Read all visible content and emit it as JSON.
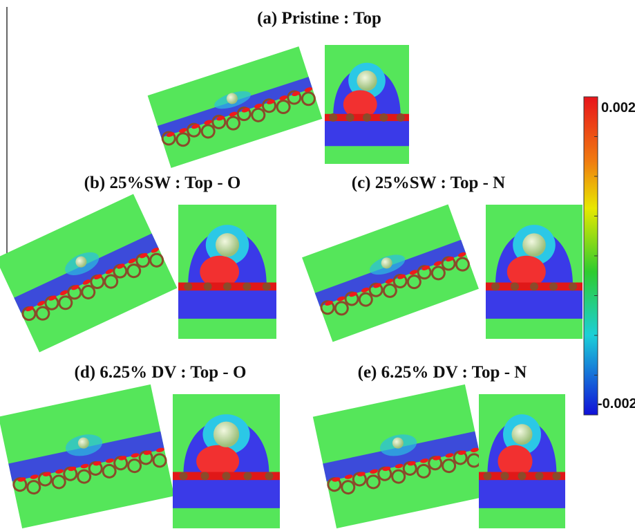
{
  "panels": [
    {
      "title": "(a) Pristine : Top"
    },
    {
      "title": "(b) 25%SW : Top - O"
    },
    {
      "title": "(c) 25%SW : Top - N"
    },
    {
      "title": "(d) 6.25% DV : Top - O"
    },
    {
      "title": "(e) 6.25% DV : Top - N"
    }
  ],
  "colorbar": {
    "labels": [
      "0.002",
      "-0.002"
    ]
  }
}
